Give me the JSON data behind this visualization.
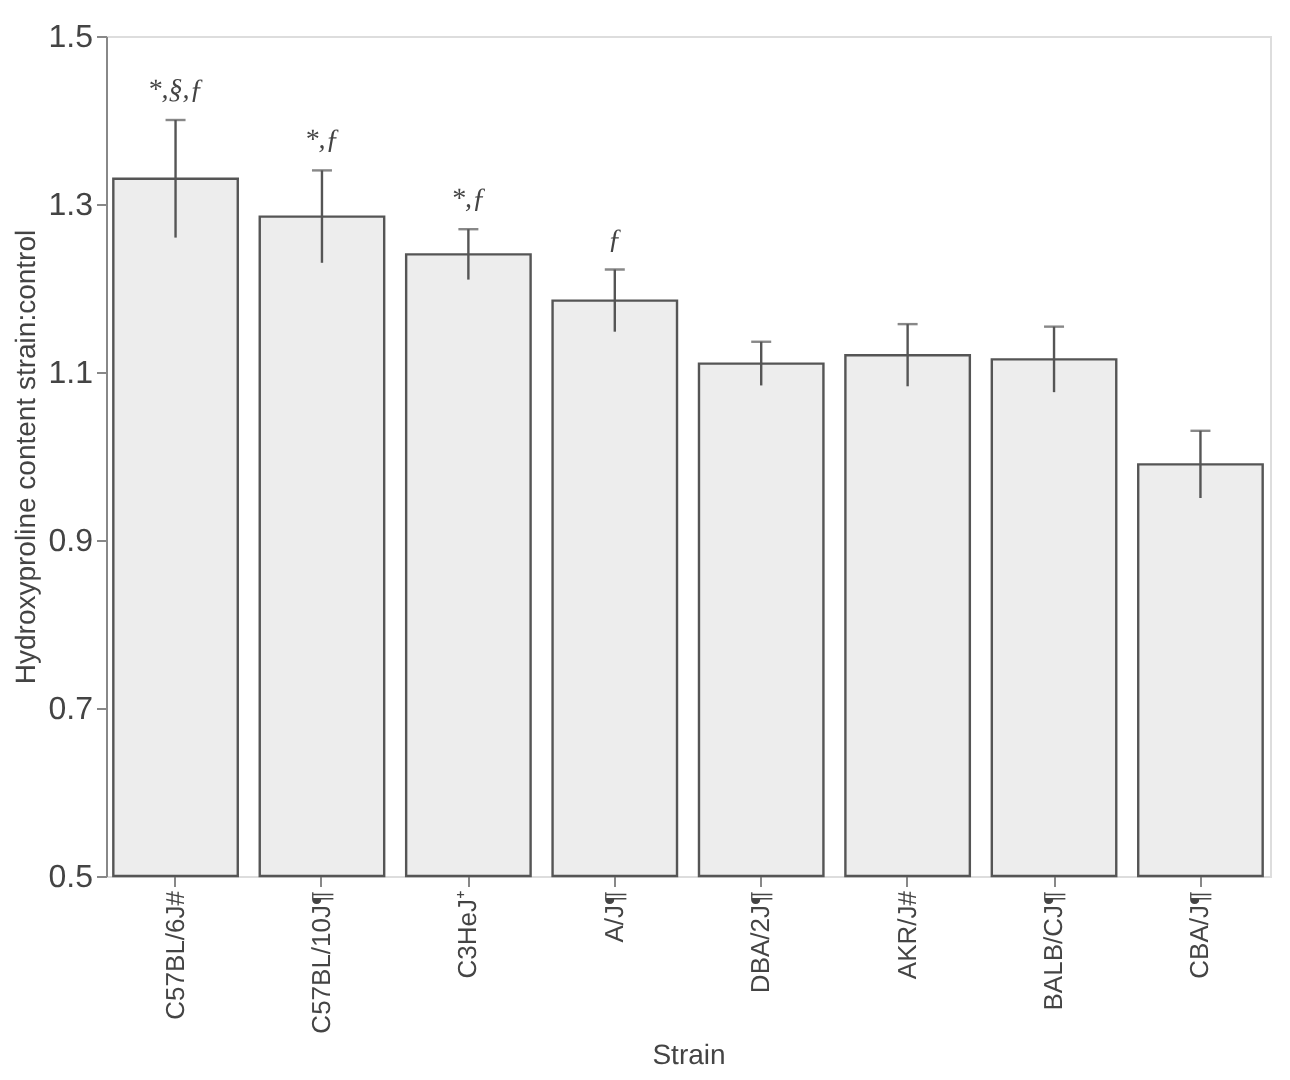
{
  "chart_data": {
    "type": "bar",
    "xlabel": "Strain",
    "ylabel": "Hydroxyproline content strain:control",
    "categories": [
      "C57BL/6J#",
      "C57BL/10J¶",
      "C3HeJ⁺",
      "A/J¶",
      "DBA/2J¶",
      "AKR/J#",
      "BALB/CJ¶",
      "CBA/J¶"
    ],
    "values": [
      1.33,
      1.285,
      1.24,
      1.185,
      1.11,
      1.12,
      1.115,
      0.99
    ],
    "errors": [
      0.07,
      0.055,
      0.03,
      0.037,
      0.026,
      0.037,
      0.039,
      0.04
    ],
    "color": "#ededed",
    "ylim": [
      0.5,
      1.5
    ],
    "yticks": [
      0.5,
      0.7,
      0.9,
      1.1,
      1.3,
      1.5
    ],
    "grid": false,
    "annotations": [
      "*,§,ƒ",
      "*,ƒ",
      "*,ƒ",
      "ƒ"
    ]
  }
}
